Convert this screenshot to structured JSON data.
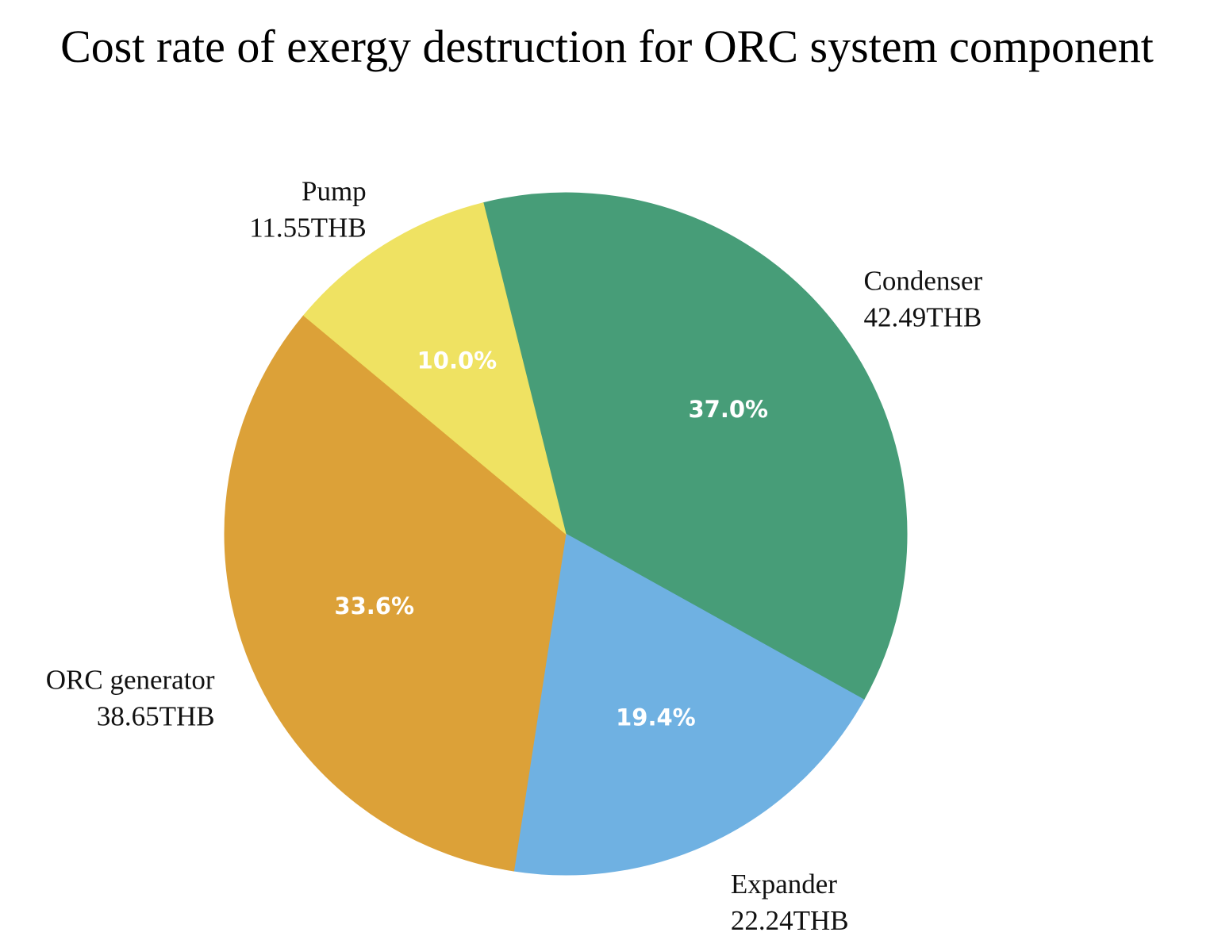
{
  "chart_data": {
    "type": "pie",
    "title": "Cost rate of exergy destruction for ORC system component",
    "unit": "THB",
    "slices": [
      {
        "name": "Condenser",
        "value": 42.49,
        "value_label": "42.49THB",
        "percent_label": "37.0%",
        "color": "#479d78"
      },
      {
        "name": "Expander",
        "value": 22.24,
        "value_label": "22.24THB",
        "percent_label": "19.4%",
        "color": "#6fb1e2"
      },
      {
        "name": "ORC generator",
        "value": 38.65,
        "value_label": "38.65THB",
        "percent_label": "33.6%",
        "color": "#dca138"
      },
      {
        "name": "Pump",
        "value": 11.55,
        "value_label": "11.55THB",
        "percent_label": "10.0%",
        "color": "#efe262"
      }
    ],
    "start_angle_deg": 104,
    "direction": "clockwise"
  }
}
